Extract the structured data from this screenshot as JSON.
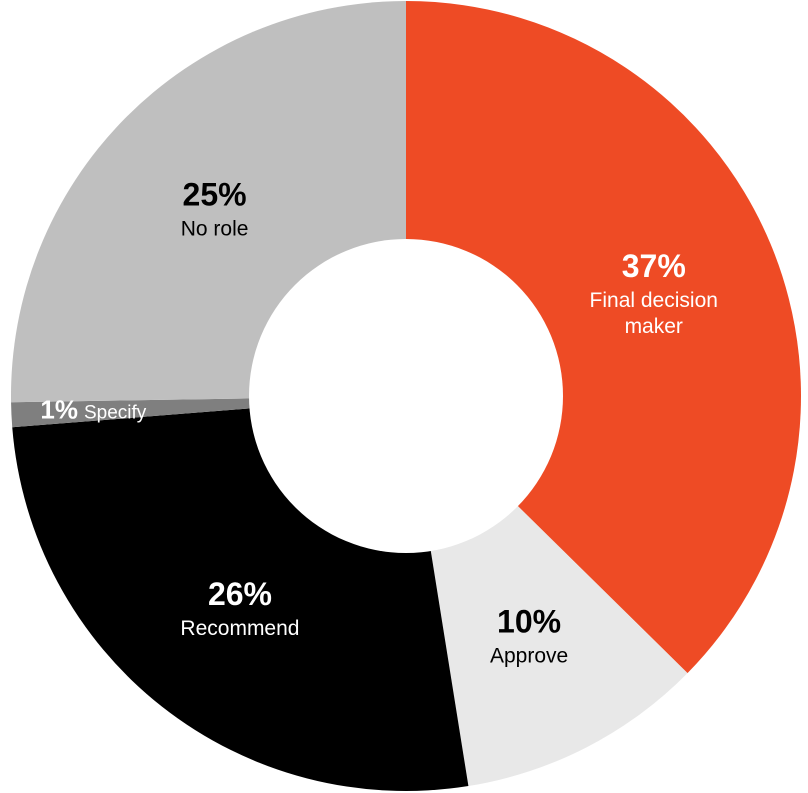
{
  "chart_data": {
    "type": "pie",
    "donut": true,
    "start_angle_deg": 0,
    "direction": "clockwise",
    "slices": [
      {
        "label": "Final decision maker",
        "label_lines": [
          "Final decision",
          "maker"
        ],
        "value": 37,
        "value_label": "37%",
        "color": "#EE4B25",
        "text_color": "#FFFFFF"
      },
      {
        "label": "Approve",
        "label_lines": [
          "Approve"
        ],
        "value": 10,
        "value_label": "10%",
        "color": "#E8E8E8",
        "text_color": "#000000"
      },
      {
        "label": "Recommend",
        "label_lines": [
          "Recommend"
        ],
        "value": 26,
        "value_label": "26%",
        "color": "#000000",
        "text_color": "#FFFFFF"
      },
      {
        "label": "Specify",
        "label_lines": [
          "Specify"
        ],
        "value": 1,
        "value_label": "1%",
        "color": "#7F7F7F",
        "text_color": "#FFFFFF",
        "inline_label": true
      },
      {
        "label": "No role",
        "label_lines": [
          "No role"
        ],
        "value": 25,
        "value_label": "25%",
        "color": "#BFBFBF",
        "text_color": "#000000"
      }
    ]
  }
}
